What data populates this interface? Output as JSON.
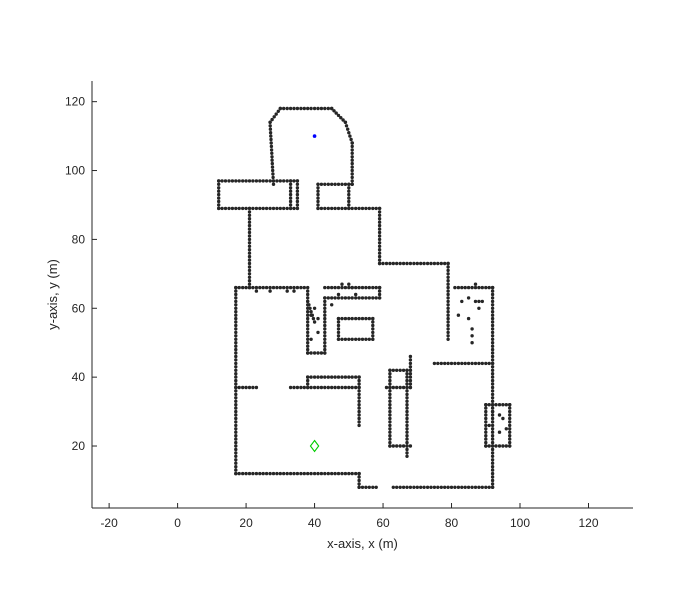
{
  "chart_data": {
    "type": "scatter",
    "title": "",
    "xlabel": "x-axis, x (m)",
    "ylabel": "y-axis, y (m)",
    "xlim": [
      -25,
      133
    ],
    "ylim": [
      2,
      126
    ],
    "xticks": [
      -20,
      0,
      20,
      40,
      60,
      80,
      100,
      120
    ],
    "yticks": [
      20,
      40,
      60,
      80,
      100,
      120
    ],
    "grid": false,
    "box": "left-bottom",
    "marker_color": "#262626",
    "wall_segments": [
      [
        [
          30,
          118
        ],
        [
          45,
          118
        ]
      ],
      [
        [
          30,
          118
        ],
        [
          27,
          114
        ]
      ],
      [
        [
          45,
          118
        ],
        [
          49,
          114
        ]
      ],
      [
        [
          27,
          114
        ],
        [
          28,
          96
        ]
      ],
      [
        [
          49,
          114
        ],
        [
          51,
          108
        ]
      ],
      [
        [
          51,
          108
        ],
        [
          51,
          96
        ]
      ],
      [
        [
          12,
          97
        ],
        [
          35,
          97
        ]
      ],
      [
        [
          12,
          89
        ],
        [
          35,
          89
        ]
      ],
      [
        [
          12,
          97
        ],
        [
          12,
          89
        ]
      ],
      [
        [
          35,
          97
        ],
        [
          35,
          89
        ]
      ],
      [
        [
          33,
          97
        ],
        [
          33,
          89
        ]
      ],
      [
        [
          21,
          89
        ],
        [
          21,
          66
        ]
      ],
      [
        [
          41,
          96
        ],
        [
          51,
          96
        ]
      ],
      [
        [
          41,
          96
        ],
        [
          41,
          89
        ]
      ],
      [
        [
          50,
          96
        ],
        [
          50,
          89
        ]
      ],
      [
        [
          41,
          89
        ],
        [
          59,
          89
        ]
      ],
      [
        [
          59,
          89
        ],
        [
          59,
          73
        ]
      ],
      [
        [
          59,
          73
        ],
        [
          79,
          73
        ]
      ],
      [
        [
          79,
          73
        ],
        [
          79,
          51
        ]
      ],
      [
        [
          17,
          66
        ],
        [
          37,
          66
        ]
      ],
      [
        [
          17,
          66
        ],
        [
          17,
          12
        ]
      ],
      [
        [
          17,
          12
        ],
        [
          53,
          12
        ]
      ],
      [
        [
          53,
          12
        ],
        [
          53,
          8
        ]
      ],
      [
        [
          53,
          8
        ],
        [
          58,
          8
        ]
      ],
      [
        [
          63,
          8
        ],
        [
          92,
          8
        ]
      ],
      [
        [
          92,
          8
        ],
        [
          92,
          66
        ]
      ],
      [
        [
          81,
          66
        ],
        [
          92,
          66
        ]
      ],
      [
        [
          38,
          66
        ],
        [
          38,
          47
        ]
      ],
      [
        [
          38,
          47
        ],
        [
          43,
          47
        ]
      ],
      [
        [
          38,
          62
        ],
        [
          40,
          56
        ]
      ],
      [
        [
          43,
          47
        ],
        [
          43,
          63
        ]
      ],
      [
        [
          43,
          63
        ],
        [
          59,
          63
        ]
      ],
      [
        [
          43,
          66
        ],
        [
          59,
          66
        ]
      ],
      [
        [
          59,
          66
        ],
        [
          59,
          63
        ]
      ],
      [
        [
          47,
          57
        ],
        [
          57,
          57
        ]
      ],
      [
        [
          47,
          51
        ],
        [
          57,
          51
        ]
      ],
      [
        [
          47,
          57
        ],
        [
          47,
          51
        ]
      ],
      [
        [
          57,
          57
        ],
        [
          57,
          51
        ]
      ],
      [
        [
          17,
          37
        ],
        [
          23,
          37
        ]
      ],
      [
        [
          33,
          37
        ],
        [
          53,
          37
        ]
      ],
      [
        [
          38,
          40
        ],
        [
          53,
          40
        ]
      ],
      [
        [
          38,
          40
        ],
        [
          38,
          37
        ]
      ],
      [
        [
          53,
          40
        ],
        [
          53,
          26
        ]
      ],
      [
        [
          61,
          37
        ],
        [
          68,
          37
        ]
      ],
      [
        [
          62,
          37
        ],
        [
          62,
          20
        ]
      ],
      [
        [
          62,
          20
        ],
        [
          68,
          20
        ]
      ],
      [
        [
          62,
          42
        ],
        [
          62,
          37
        ]
      ],
      [
        [
          62,
          42
        ],
        [
          68,
          42
        ]
      ],
      [
        [
          67,
          42
        ],
        [
          67,
          17
        ]
      ],
      [
        [
          68,
          46
        ],
        [
          68,
          37
        ]
      ],
      [
        [
          75,
          44
        ],
        [
          92,
          44
        ]
      ],
      [
        [
          90,
          32
        ],
        [
          97,
          32
        ]
      ],
      [
        [
          90,
          20
        ],
        [
          97,
          20
        ]
      ],
      [
        [
          90,
          32
        ],
        [
          90,
          20
        ]
      ],
      [
        [
          97,
          32
        ],
        [
          97,
          20
        ]
      ]
    ],
    "scatter_points": [
      [
        23,
        65
      ],
      [
        27,
        65
      ],
      [
        32,
        65
      ],
      [
        34,
        65
      ],
      [
        48,
        67
      ],
      [
        50,
        67
      ],
      [
        52,
        64
      ],
      [
        47,
        64
      ],
      [
        45,
        61
      ],
      [
        51,
        66
      ],
      [
        39,
        58
      ],
      [
        40,
        60
      ],
      [
        41,
        57
      ],
      [
        41,
        53
      ],
      [
        39,
        51
      ],
      [
        83,
        62
      ],
      [
        87,
        62
      ],
      [
        88,
        62
      ],
      [
        88,
        60
      ],
      [
        89,
        62
      ],
      [
        86,
        54
      ],
      [
        86,
        52
      ],
      [
        86,
        50
      ],
      [
        85,
        57
      ],
      [
        82,
        58
      ],
      [
        85,
        63
      ],
      [
        87,
        67
      ],
      [
        92,
        30
      ],
      [
        94,
        29
      ],
      [
        95,
        28
      ],
      [
        91,
        26
      ],
      [
        94,
        24
      ],
      [
        96,
        25
      ]
    ],
    "series": [
      {
        "marker": "dot",
        "color": "#0000ff",
        "points": [
          [
            40,
            110
          ]
        ]
      },
      {
        "marker": "diamond",
        "color": "#00cc00",
        "points": [
          [
            40,
            20
          ]
        ]
      }
    ]
  }
}
